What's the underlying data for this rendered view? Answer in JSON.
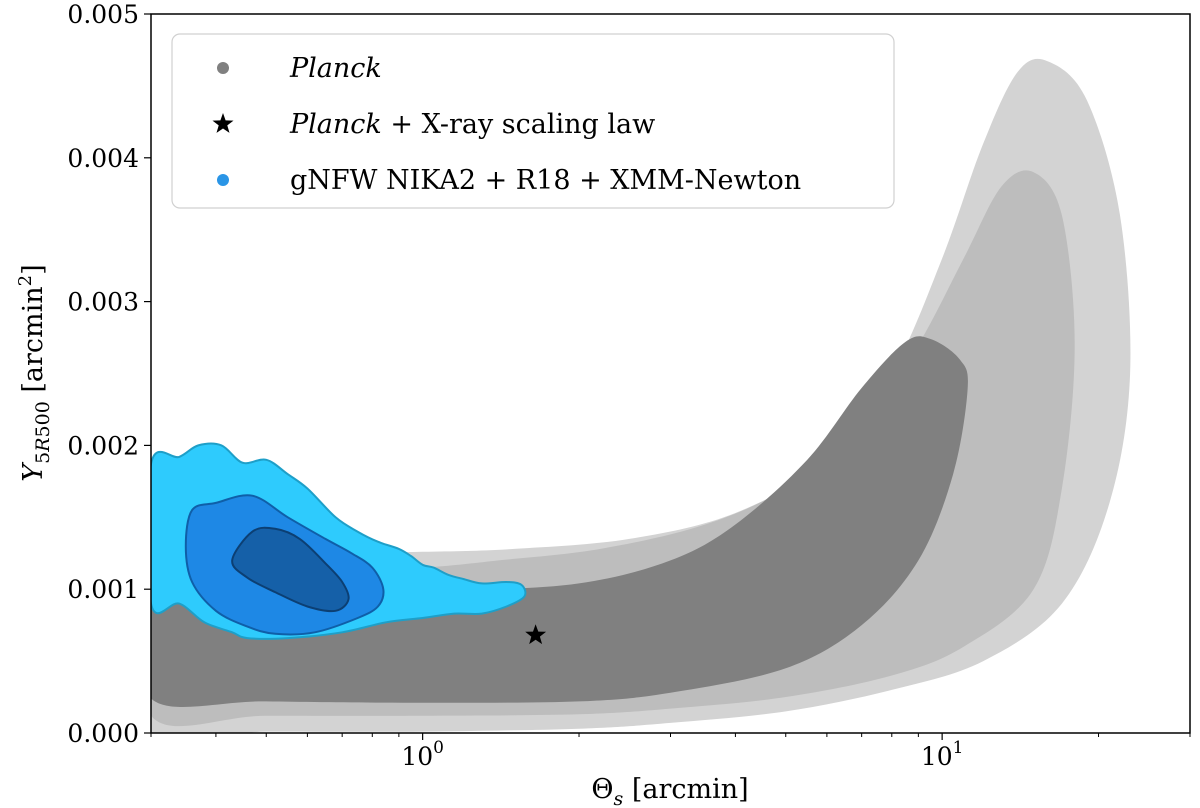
{
  "chart_data": {
    "type": "contour",
    "title": "",
    "xlabel": "Θs [arcmin]",
    "ylabel": "Y5R500 [arcmin²]",
    "xscale": "log",
    "xlim": [
      0.3,
      30
    ],
    "ylim": [
      0.0,
      0.005
    ],
    "x_tick_labels": [
      {
        "value": 1,
        "base": "10",
        "exp": "0"
      },
      {
        "value": 10,
        "base": "10",
        "exp": "1"
      }
    ],
    "y_tick_labels": [
      "0.000",
      "0.001",
      "0.002",
      "0.003",
      "0.004",
      "0.005"
    ],
    "y_ticks": [
      0.0,
      0.001,
      0.002,
      0.003,
      0.004,
      0.005
    ],
    "legend": {
      "position": "top-left",
      "entries": [
        {
          "name": "planck",
          "pre": "",
          "italic": "Planck",
          "post": "",
          "marker": "circle",
          "color": "#808080"
        },
        {
          "name": "planck-xray",
          "pre": "",
          "italic": "Planck",
          "post": " + X-ray scaling law",
          "marker": "star",
          "color": "#000000"
        },
        {
          "name": "gnfw",
          "pre": "gNFW NIKA2 + R18 + XMM-Newton",
          "italic": "",
          "post": "",
          "marker": "circle",
          "color": "#2a95e6"
        }
      ]
    },
    "series": [
      {
        "name": "Planck",
        "kind": "filled-contours",
        "levels": [
          {
            "level": "3-sigma",
            "color": "#d3d3d3",
            "points": [
              [
                0.3,
                1e-05
              ],
              [
                0.5,
                1e-05
              ],
              [
                1,
                1e-05
              ],
              [
                2,
                3e-05
              ],
              [
                3,
                7e-05
              ],
              [
                5,
                0.00015
              ],
              [
                8,
                0.0003
              ],
              [
                12,
                0.0005
              ],
              [
                17,
                0.0009
              ],
              [
                21,
                0.0016
              ],
              [
                23,
                0.0025
              ],
              [
                22,
                0.0036
              ],
              [
                19,
                0.0044
              ],
              [
                16,
                0.00467
              ],
              [
                14,
                0.0046
              ],
              [
                12,
                0.0041
              ],
              [
                10,
                0.0033
              ],
              [
                8,
                0.0025
              ],
              [
                6,
                0.0019
              ],
              [
                4,
                0.00153
              ],
              [
                2.5,
                0.00135
              ],
              [
                1.5,
                0.00128
              ],
              [
                1,
                0.00126
              ],
              [
                0.6,
                0.00125
              ],
              [
                0.35,
                0.00125
              ],
              [
                0.3,
                0.00125
              ]
            ]
          },
          {
            "level": "2-sigma",
            "color": "#bdbdbd",
            "points": [
              [
                0.3,
                0.00012
              ],
              [
                0.5,
                0.00012
              ],
              [
                1,
                0.00012
              ],
              [
                2,
                0.00013
              ],
              [
                3,
                0.00017
              ],
              [
                5,
                0.00025
              ],
              [
                8,
                0.0004
              ],
              [
                11,
                0.0006
              ],
              [
                15,
                0.001
              ],
              [
                17,
                0.0017
              ],
              [
                18,
                0.0027
              ],
              [
                17,
                0.0036
              ],
              [
                15,
                0.0039
              ],
              [
                13,
                0.0038
              ],
              [
                11,
                0.0033
              ],
              [
                9,
                0.0027
              ],
              [
                7,
                0.0021
              ],
              [
                5,
                0.0017
              ],
              [
                3.5,
                0.00145
              ],
              [
                2.2,
                0.00128
              ],
              [
                1.4,
                0.0012
              ],
              [
                1,
                0.00115
              ],
              [
                0.6,
                0.00112
              ],
              [
                0.35,
                0.0011
              ],
              [
                0.3,
                0.0011
              ]
            ]
          },
          {
            "level": "1-sigma",
            "color": "#808080",
            "points": [
              [
                0.3,
                0.00024
              ],
              [
                0.5,
                0.00022
              ],
              [
                1,
                0.00021
              ],
              [
                2,
                0.00022
              ],
              [
                3,
                0.00028
              ],
              [
                5,
                0.00045
              ],
              [
                7,
                0.00075
              ],
              [
                9,
                0.0012
              ],
              [
                10.5,
                0.0018
              ],
              [
                11.2,
                0.0024
              ],
              [
                10.8,
                0.0026
              ],
              [
                9.5,
                0.00274
              ],
              [
                8.5,
                0.00272
              ],
              [
                7,
                0.0024
              ],
              [
                5.5,
                0.0019
              ],
              [
                4,
                0.00145
              ],
              [
                3,
                0.0012
              ],
              [
                2,
                0.00104
              ],
              [
                1.2,
                0.00099
              ],
              [
                0.8,
                0.00097
              ],
              [
                0.5,
                0.00096
              ],
              [
                0.3,
                0.00096
              ]
            ]
          }
        ]
      },
      {
        "name": "gNFW NIKA2 + R18 + XMM-Newton",
        "kind": "filled-contours",
        "levels": [
          {
            "level": "outer",
            "color": "#2ecbfd",
            "stroke": "#1e9fc8",
            "points": [
              [
                0.3,
                0.00187
              ],
              [
                0.34,
                0.00192
              ],
              [
                0.37,
                0.002
              ],
              [
                0.41,
                0.002
              ],
              [
                0.45,
                0.00188
              ],
              [
                0.5,
                0.0019
              ],
              [
                0.55,
                0.0018
              ],
              [
                0.6,
                0.0017
              ],
              [
                0.68,
                0.0015
              ],
              [
                0.75,
                0.0014
              ],
              [
                0.82,
                0.00133
              ],
              [
                0.9,
                0.00128
              ],
              [
                0.95,
                0.00123
              ],
              [
                1.0,
                0.00117
              ],
              [
                1.05,
                0.00115
              ],
              [
                1.12,
                0.0011
              ],
              [
                1.2,
                0.00107
              ],
              [
                1.3,
                0.00104
              ],
              [
                1.45,
                0.00105
              ],
              [
                1.55,
                0.00103
              ],
              [
                1.57,
                0.00095
              ],
              [
                1.45,
                0.00088
              ],
              [
                1.3,
                0.00083
              ],
              [
                1.15,
                0.00083
              ],
              [
                1.0,
                0.0008
              ],
              [
                0.85,
                0.00077
              ],
              [
                0.7,
                0.0007
              ],
              [
                0.55,
                0.00066
              ],
              [
                0.46,
                0.00066
              ],
              [
                0.43,
                0.0007
              ],
              [
                0.38,
                0.00077
              ],
              [
                0.34,
                0.0009
              ],
              [
                0.3,
                0.0009
              ]
            ]
          },
          {
            "level": "middle",
            "color": "#1e88e5",
            "stroke": "#0f5fa8",
            "points": [
              [
                0.36,
                0.00155
              ],
              [
                0.4,
                0.0016
              ],
              [
                0.47,
                0.00165
              ],
              [
                0.55,
                0.0015
              ],
              [
                0.65,
                0.00135
              ],
              [
                0.73,
                0.00125
              ],
              [
                0.8,
                0.00115
              ],
              [
                0.84,
                0.001
              ],
              [
                0.82,
                0.00088
              ],
              [
                0.75,
                0.0008
              ],
              [
                0.62,
                0.0007
              ],
              [
                0.52,
                0.00069
              ],
              [
                0.46,
                0.00074
              ],
              [
                0.4,
                0.00085
              ],
              [
                0.36,
                0.00105
              ],
              [
                0.35,
                0.0013
              ]
            ]
          },
          {
            "level": "inner",
            "color": "#1560a8",
            "stroke": "#0c3f73",
            "points": [
              [
                0.43,
                0.0012
              ],
              [
                0.47,
                0.0014
              ],
              [
                0.52,
                0.00142
              ],
              [
                0.58,
                0.00135
              ],
              [
                0.65,
                0.00118
              ],
              [
                0.7,
                0.00105
              ],
              [
                0.72,
                0.00093
              ],
              [
                0.68,
                0.00085
              ],
              [
                0.6,
                0.00088
              ],
              [
                0.52,
                0.00098
              ],
              [
                0.46,
                0.00108
              ]
            ]
          }
        ]
      },
      {
        "name": "Planck + X-ray scaling law",
        "kind": "point",
        "x": 1.65,
        "y": 0.00068,
        "marker": "star",
        "color": "#000000"
      }
    ]
  }
}
